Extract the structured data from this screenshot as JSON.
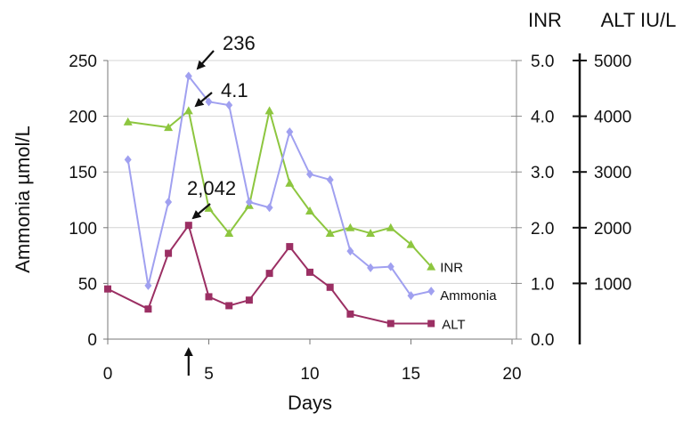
{
  "chart_data": {
    "type": "line",
    "xlabel": "Days",
    "xlim": [
      0,
      20
    ],
    "x_ticks": [
      "0",
      "5",
      "10",
      "15",
      "20"
    ],
    "y_left": {
      "label": "Ammonia µmol/L",
      "lim": [
        0,
        250
      ],
      "ticks": [
        "0",
        "50",
        "100",
        "150",
        "200",
        "250"
      ]
    },
    "y_right_inr": {
      "label": "INR",
      "lim": [
        0,
        5
      ],
      "ticks": [
        "0.0",
        "1.0",
        "2.0",
        "3.0",
        "4.0",
        "5.0"
      ]
    },
    "y_right_alt": {
      "label": "ALT IU/L",
      "lim": [
        0,
        5000
      ],
      "ticks": [
        "1000",
        "2000",
        "3000",
        "4000",
        "5000"
      ]
    },
    "grid": "horizontal",
    "series": [
      {
        "name": "INR",
        "axis": "inr",
        "color": "#8dc63f",
        "marker": "triangle",
        "x": [
          1,
          3,
          4,
          5,
          6,
          7,
          8,
          9,
          10,
          11,
          12,
          13,
          14,
          15,
          16
        ],
        "y": [
          3.9,
          3.8,
          4.1,
          2.35,
          1.9,
          2.4,
          4.1,
          2.8,
          2.3,
          1.9,
          2.0,
          1.9,
          2.0,
          1.7,
          1.3
        ]
      },
      {
        "name": "Ammonia",
        "axis": "ammonia",
        "color": "#a0a0f0",
        "marker": "diamond",
        "x": [
          1,
          2,
          3,
          4,
          5,
          6,
          7,
          8,
          9,
          10,
          11,
          12,
          13,
          14,
          15,
          16
        ],
        "y": [
          161,
          48,
          123,
          236,
          213,
          210,
          123,
          118,
          186,
          148,
          143,
          79,
          64,
          65,
          39,
          43
        ]
      },
      {
        "name": "ALT",
        "axis": "alt",
        "color": "#9b2f63",
        "marker": "square",
        "x": [
          0,
          2,
          3,
          4,
          5,
          6,
          7,
          8,
          9,
          10,
          11,
          12,
          14,
          16
        ],
        "y": [
          900,
          540,
          1540,
          2042,
          760,
          600,
          700,
          1180,
          1660,
          1200,
          930,
          450,
          280,
          280
        ]
      }
    ],
    "annotations": [
      {
        "text": "236",
        "x": 4,
        "y": 236,
        "axis": "ammonia"
      },
      {
        "text": "4.1",
        "x": 4,
        "y": 4.1,
        "axis": "inr"
      },
      {
        "text": "2,042",
        "x": 4,
        "y": 2042,
        "axis": "alt"
      }
    ],
    "x_marker": {
      "x": 4
    }
  }
}
